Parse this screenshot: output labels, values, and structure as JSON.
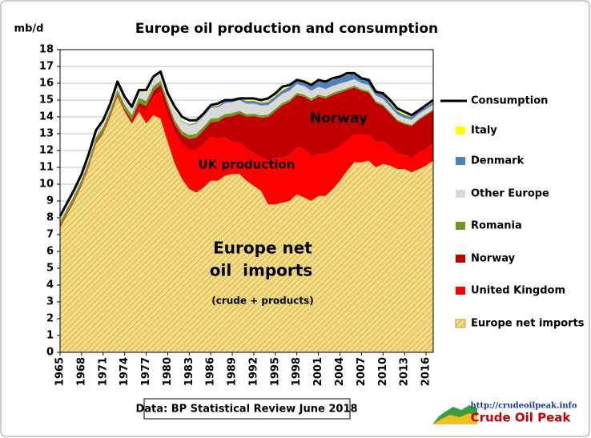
{
  "chart_data": {
    "type": "stacked-area",
    "title": "Europe oil production and consumption",
    "y_axis_label": "mb/d",
    "source": "Data: BP Statistical Review June 2018",
    "logo_url": "http://crudeoilpeak.info",
    "logo_name": "Crude Oil Peak",
    "annotations": [
      "Norway",
      "UK production",
      "Europe net",
      "oil  imports",
      "(crude + products)"
    ],
    "x": [
      1965,
      1966,
      1967,
      1968,
      1969,
      1970,
      1971,
      1972,
      1973,
      1974,
      1975,
      1976,
      1977,
      1978,
      1979,
      1980,
      1981,
      1982,
      1983,
      1984,
      1985,
      1986,
      1987,
      1988,
      1989,
      1990,
      1991,
      1992,
      1993,
      1994,
      1995,
      1996,
      1997,
      1998,
      1999,
      2000,
      2001,
      2002,
      2003,
      2004,
      2005,
      2006,
      2007,
      2008,
      2009,
      2010,
      2011,
      2012,
      2013,
      2014,
      2015,
      2016,
      2017
    ],
    "xlim": [
      1965,
      2017
    ],
    "xticks": [
      1965,
      1968,
      1971,
      1974,
      1977,
      1980,
      1983,
      1986,
      1989,
      1992,
      1995,
      1998,
      2001,
      2004,
      2007,
      2010,
      2013,
      2016
    ],
    "ylim": [
      0,
      18
    ],
    "yticks": [
      0,
      1,
      2,
      3,
      4,
      5,
      6,
      7,
      8,
      9,
      10,
      11,
      12,
      13,
      14,
      15,
      16,
      17,
      18
    ],
    "grid": true,
    "legend_position": "right",
    "series": [
      {
        "name": "Europe net imports",
        "color": "#f3dc82",
        "hatch": true,
        "values": [
          7.4,
          8.2,
          9.0,
          9.9,
          11.0,
          12.4,
          13.0,
          14.0,
          15.2,
          14.3,
          13.6,
          14.3,
          13.6,
          14.1,
          13.9,
          12.5,
          11.2,
          10.3,
          9.7,
          9.5,
          9.8,
          10.2,
          10.2,
          10.5,
          10.6,
          10.6,
          10.2,
          9.9,
          9.6,
          8.8,
          8.8,
          8.9,
          9.0,
          9.4,
          9.2,
          9.0,
          9.3,
          9.3,
          9.7,
          10.2,
          10.8,
          11.3,
          11.3,
          11.4,
          11.0,
          11.2,
          11.1,
          10.9,
          10.9,
          10.7,
          10.9,
          11.1,
          11.4
        ]
      },
      {
        "name": "United Kingdom",
        "color": "#ff0000",
        "values": [
          0.09,
          0.09,
          0.09,
          0.09,
          0.09,
          0.09,
          0.09,
          0.09,
          0.09,
          0.09,
          0.03,
          0.25,
          0.77,
          1.08,
          1.6,
          1.65,
          1.85,
          2.1,
          2.35,
          2.55,
          2.6,
          2.6,
          2.5,
          2.3,
          1.9,
          1.9,
          1.9,
          1.95,
          2.0,
          2.6,
          2.75,
          2.7,
          2.7,
          2.8,
          2.9,
          2.65,
          2.5,
          2.5,
          2.3,
          2.05,
          1.8,
          1.65,
          1.65,
          1.55,
          1.5,
          1.35,
          1.1,
          0.95,
          0.86,
          0.85,
          0.96,
          1.0,
          1.0
        ]
      },
      {
        "name": "Norway",
        "color": "#c00000",
        "values": [
          0,
          0,
          0,
          0,
          0,
          0,
          0.01,
          0.03,
          0.03,
          0.04,
          0.19,
          0.28,
          0.28,
          0.36,
          0.4,
          0.53,
          0.5,
          0.52,
          0.64,
          0.72,
          0.8,
          0.89,
          1.03,
          1.18,
          1.55,
          1.7,
          1.92,
          2.2,
          2.35,
          2.6,
          2.8,
          3.1,
          3.2,
          3.1,
          3.1,
          3.3,
          3.4,
          3.3,
          3.3,
          3.2,
          3.0,
          2.8,
          2.6,
          2.5,
          2.35,
          2.1,
          2.0,
          1.9,
          1.8,
          1.9,
          1.95,
          2.0,
          1.97
        ]
      },
      {
        "name": "Romania",
        "color": "#6b9a1f",
        "values": [
          0.26,
          0.27,
          0.27,
          0.27,
          0.28,
          0.29,
          0.29,
          0.29,
          0.29,
          0.29,
          0.29,
          0.3,
          0.3,
          0.29,
          0.25,
          0.24,
          0.23,
          0.23,
          0.23,
          0.23,
          0.22,
          0.21,
          0.2,
          0.19,
          0.18,
          0.16,
          0.14,
          0.14,
          0.14,
          0.14,
          0.14,
          0.14,
          0.13,
          0.13,
          0.13,
          0.13,
          0.13,
          0.12,
          0.12,
          0.12,
          0.11,
          0.11,
          0.1,
          0.1,
          0.09,
          0.09,
          0.09,
          0.08,
          0.08,
          0.08,
          0.08,
          0.07,
          0.07
        ]
      },
      {
        "name": "Other Europe",
        "color": "#d9d9d9",
        "values": [
          0.35,
          0.35,
          0.36,
          0.36,
          0.37,
          0.38,
          0.38,
          0.38,
          0.38,
          0.39,
          0.4,
          0.42,
          0.44,
          0.46,
          0.48,
          0.5,
          0.52,
          0.55,
          0.58,
          0.6,
          0.62,
          0.64,
          0.64,
          0.65,
          0.65,
          0.64,
          0.62,
          0.6,
          0.58,
          0.56,
          0.55,
          0.54,
          0.53,
          0.52,
          0.5,
          0.48,
          0.46,
          0.44,
          0.42,
          0.41,
          0.4,
          0.38,
          0.36,
          0.35,
          0.34,
          0.33,
          0.32,
          0.31,
          0.3,
          0.3,
          0.3,
          0.29,
          0.29
        ]
      },
      {
        "name": "Denmark",
        "color": "#4f81bd",
        "values": [
          0,
          0,
          0,
          0,
          0,
          0,
          0,
          0.01,
          0.01,
          0.01,
          0.01,
          0.01,
          0.01,
          0.01,
          0.01,
          0.01,
          0.02,
          0.04,
          0.05,
          0.06,
          0.07,
          0.07,
          0.09,
          0.1,
          0.11,
          0.12,
          0.16,
          0.16,
          0.17,
          0.19,
          0.19,
          0.2,
          0.23,
          0.24,
          0.3,
          0.36,
          0.35,
          0.37,
          0.37,
          0.39,
          0.38,
          0.34,
          0.31,
          0.29,
          0.27,
          0.25,
          0.23,
          0.2,
          0.18,
          0.17,
          0.16,
          0.15,
          0.14
        ]
      },
      {
        "name": "Italy",
        "color": "#ffff00",
        "values": [
          0.04,
          0.04,
          0.04,
          0.04,
          0.04,
          0.04,
          0.04,
          0.04,
          0.04,
          0.04,
          0.04,
          0.04,
          0.04,
          0.04,
          0.04,
          0.04,
          0.04,
          0.04,
          0.04,
          0.04,
          0.05,
          0.05,
          0.05,
          0.05,
          0.08,
          0.08,
          0.08,
          0.08,
          0.08,
          0.08,
          0.08,
          0.08,
          0.08,
          0.08,
          0.08,
          0.08,
          0.08,
          0.08,
          0.08,
          0.08,
          0.08,
          0.08,
          0.08,
          0.08,
          0.08,
          0.08,
          0.08,
          0.08,
          0.08,
          0.08,
          0.08,
          0.08,
          0.08
        ]
      }
    ],
    "line_series": {
      "name": "Consumption",
      "color": "#000000",
      "values": [
        8.1,
        8.9,
        9.7,
        10.6,
        11.8,
        13.2,
        13.8,
        14.8,
        16.1,
        15.2,
        14.6,
        15.6,
        15.6,
        16.4,
        16.7,
        15.4,
        14.6,
        14.0,
        13.8,
        13.8,
        14.2,
        14.7,
        14.8,
        15.0,
        15.0,
        15.1,
        15.1,
        15.1,
        15.0,
        15.1,
        15.4,
        15.8,
        15.9,
        16.2,
        16.1,
        15.9,
        16.2,
        16.1,
        16.3,
        16.4,
        16.6,
        16.6,
        16.3,
        16.2,
        15.5,
        15.4,
        15.0,
        14.5,
        14.3,
        14.1,
        14.4,
        14.7,
        15.0
      ]
    }
  }
}
